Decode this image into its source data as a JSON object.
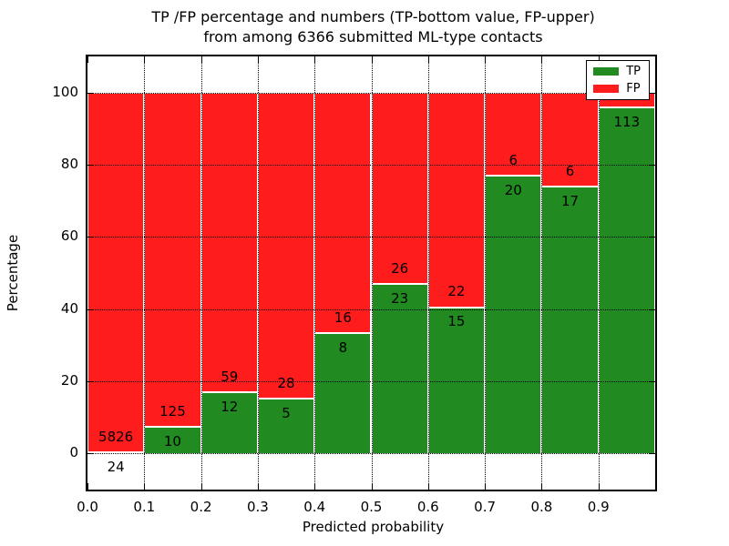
{
  "title_line1": "TP /FP percentage and numbers (TP-bottom value, FP-upper)",
  "title_line2": "from among 6366 submitted ML-type contacts",
  "chart_data": {
    "type": "bar",
    "stacked": true,
    "title": "TP /FP percentage and numbers (TP-bottom value, FP-upper) from among 6366 submitted ML-type contacts",
    "xlabel": "Predicted probability",
    "ylabel": "Percentage",
    "xlim": [
      0.0,
      1.0
    ],
    "ylim": [
      -10,
      110
    ],
    "bin_width": 0.1,
    "grid": true,
    "legend_position": "upper right",
    "x_tick_labels": [
      "0.0",
      "0.1",
      "0.2",
      "0.3",
      "0.4",
      "0.5",
      "0.6",
      "0.7",
      "0.8",
      "0.9"
    ],
    "y_tick_values": [
      0,
      20,
      40,
      60,
      80,
      100
    ],
    "note": "Each bin stacked to 100%; green TP share bottom, red FP share top; counts printed at segment boundary",
    "series": [
      {
        "name": "TP",
        "color": "#218a21"
      },
      {
        "name": "FP",
        "color": "#ff1c1c"
      }
    ],
    "bars": [
      {
        "bin_start": "0.0",
        "tp": 24,
        "fp": 5826,
        "tp_label": "24",
        "fp_label": "5826"
      },
      {
        "bin_start": "0.1",
        "tp": 10,
        "fp": 125,
        "tp_label": "10",
        "fp_label": "125"
      },
      {
        "bin_start": "0.2",
        "tp": 12,
        "fp": 59,
        "tp_label": "12",
        "fp_label": "59"
      },
      {
        "bin_start": "0.3",
        "tp": 5,
        "fp": 28,
        "tp_label": "5",
        "fp_label": "28"
      },
      {
        "bin_start": "0.4",
        "tp": 8,
        "fp": 16,
        "tp_label": "8",
        "fp_label": "16"
      },
      {
        "bin_start": "0.5",
        "tp": 23,
        "fp": 26,
        "tp_label": "23",
        "fp_label": "26"
      },
      {
        "bin_start": "0.6",
        "tp": 15,
        "fp": 22,
        "tp_label": "15",
        "fp_label": "22"
      },
      {
        "bin_start": "0.7",
        "tp": 20,
        "fp": 6,
        "tp_label": "20",
        "fp_label": "6"
      },
      {
        "bin_start": "0.8",
        "tp": 17,
        "fp": 6,
        "tp_label": "17",
        "fp_label": "6"
      },
      {
        "bin_start": "0.9",
        "tp": 113,
        "fp": 5,
        "tp_label": "113",
        "fp_label": ""
      }
    ]
  },
  "legend": {
    "entries": [
      {
        "label": "TP",
        "color": "#218a21"
      },
      {
        "label": "FP",
        "color": "#ff1c1c"
      }
    ]
  },
  "colors": {
    "tp_green": "#218a21",
    "fp_red": "#ff1c1c",
    "grid": "#000000",
    "text": "#000000",
    "background": "#ffffff"
  }
}
